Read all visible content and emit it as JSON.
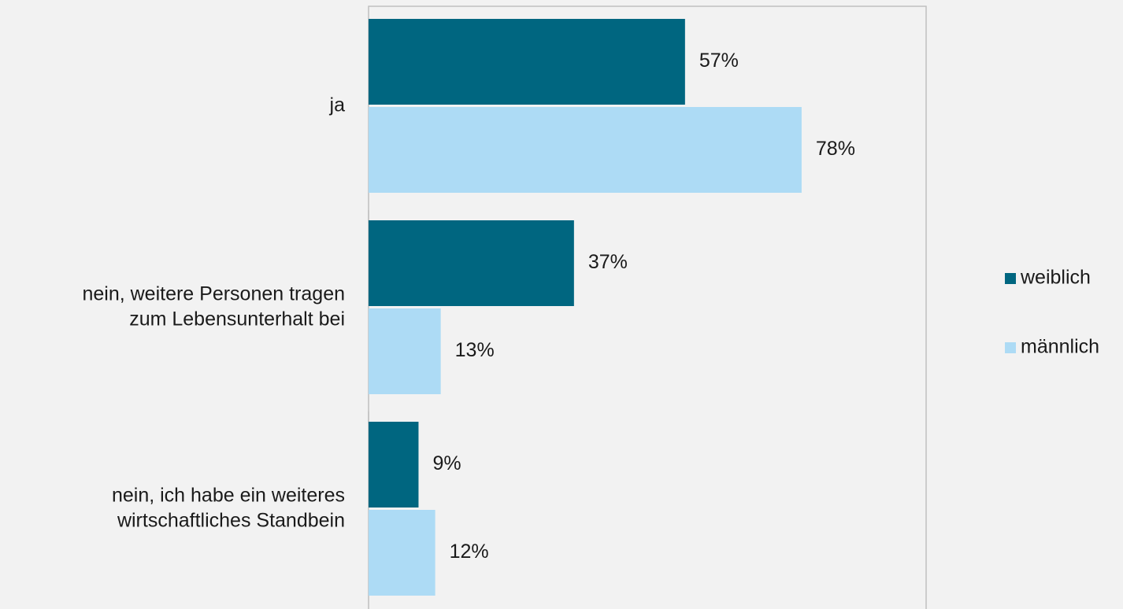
{
  "chart_data": {
    "type": "bar",
    "orientation": "horizontal",
    "categories": [
      [
        "ja"
      ],
      [
        "nein, weitere Personen tragen",
        "zum Lebensunterhalt bei"
      ],
      [
        "nein, ich habe ein weiteres",
        "wirtschaftliches Standbein"
      ]
    ],
    "series": [
      {
        "name": "weiblich",
        "color": "#006680",
        "values": [
          57,
          37,
          9
        ],
        "labels": [
          "57%",
          "37%",
          "9%"
        ]
      },
      {
        "name": "männlich",
        "color": "#addbf5",
        "values": [
          78,
          13,
          12
        ],
        "labels": [
          "78%",
          "13%",
          "12%"
        ]
      }
    ],
    "xlim": [
      0,
      100
    ],
    "grid": false,
    "legend": "right",
    "title": "",
    "xlabel": "",
    "ylabel": ""
  }
}
